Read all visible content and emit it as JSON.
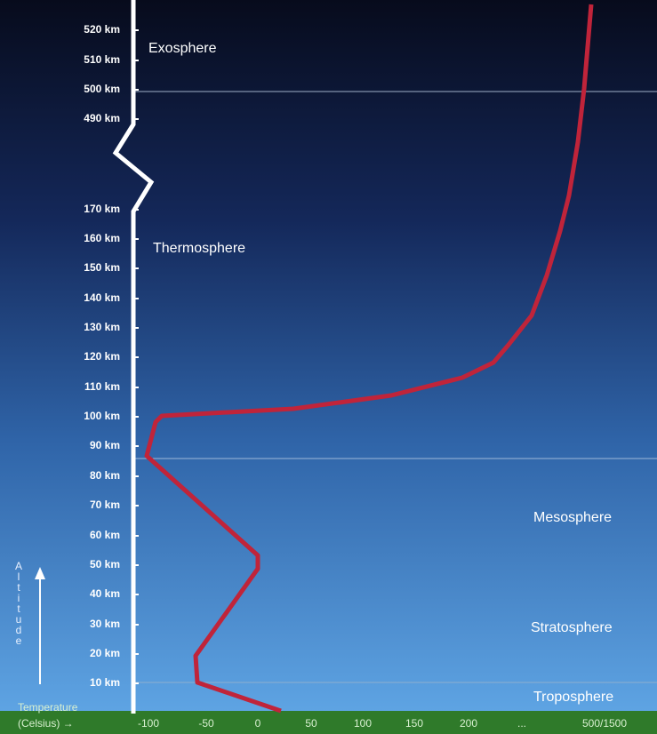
{
  "altitude_labels": [
    "520 km",
    "510 km",
    "500 km",
    "490 km",
    "170 km",
    "160 km",
    "150 km",
    "140 km",
    "130 km",
    "120 km",
    "110 km",
    "100 km",
    "90 km",
    "80 km",
    "70 km",
    "60 km",
    "50 km",
    "40 km",
    "30 km",
    "20 km",
    "10 km"
  ],
  "layers": [
    "Exosphere",
    "Thermosphere",
    "Mesosphere",
    "Stratosphere",
    "Troposphere"
  ],
  "axis_title": "Altitude",
  "temperature_title": [
    "Temperature",
    "(Celsius) →"
  ],
  "temperature_labels": [
    "-100",
    "-50",
    "0",
    "50",
    "100",
    "150",
    "200",
    "...",
    "500/1500"
  ]
}
